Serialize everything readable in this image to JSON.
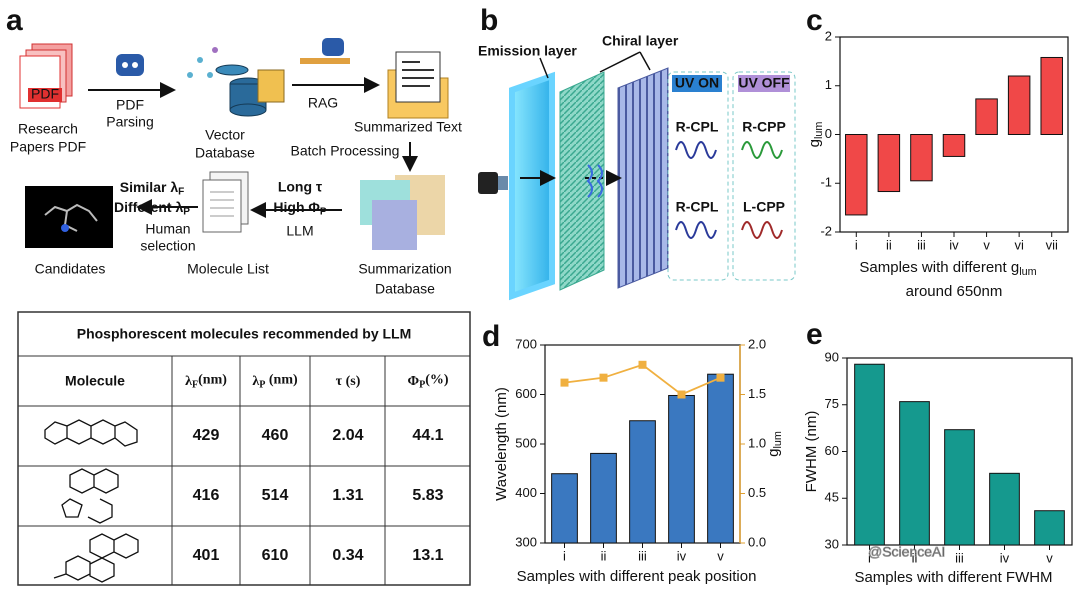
{
  "panel_labels": [
    "a",
    "b",
    "c",
    "d",
    "e"
  ],
  "workflow": {
    "research": [
      "Research",
      "Papers PDF"
    ],
    "pdf_icon": "PDF",
    "parsing": [
      "PDF",
      "Parsing"
    ],
    "vector": [
      "Vector",
      "Database"
    ],
    "rag": "RAG",
    "summarized": "Summarized Text",
    "batch": "Batch Processing",
    "summ_db": [
      "Summarization",
      "Database"
    ],
    "long_tau": "Long τ",
    "high_phi": {
      "main": "High Φ",
      "sub": "P"
    },
    "llm": "LLM",
    "molecule_list": "Molecule List",
    "similar": {
      "main": "Similar λ",
      "sub": "F"
    },
    "different": {
      "main": "Different λ",
      "sub": "P"
    },
    "human": [
      "Human",
      "selection"
    ],
    "candidates": "Candidates"
  },
  "device": {
    "emission": "Emission layer",
    "chiral": "Chiral layer",
    "uv_on": "UV ON",
    "uv_off": "UV OFF",
    "cells": [
      "R-CPL",
      "R-CPP",
      "R-CPL",
      "L-CPP"
    ]
  },
  "table": {
    "title": "Phosphorescent molecules recommended by LLM",
    "headers": [
      "Molecule",
      {
        "main": "λ",
        "sub": "F",
        "rest": "(nm)"
      },
      {
        "main": "λ",
        "sub": "P",
        "rest": " (nm)"
      },
      "τ (s)",
      {
        "main": "Φ",
        "sub": "P",
        "rest": "(%)"
      }
    ],
    "rows": [
      [
        429,
        460,
        2.04,
        44.1
      ],
      [
        416,
        514,
        1.31,
        5.83
      ],
      [
        401,
        610,
        0.34,
        13.1
      ]
    ]
  },
  "watermark": "@ScienceAI",
  "chart_data": [
    {
      "type": "bar",
      "categories": [
        "i",
        "ii",
        "iii",
        "iv",
        "v",
        "vi",
        "vii"
      ],
      "values": [
        -1.65,
        -1.17,
        -0.95,
        -0.45,
        0.73,
        1.2,
        1.58
      ],
      "color": "#f04848",
      "ylim": [
        -2,
        2
      ],
      "yticks": [
        -2,
        -1,
        0,
        1,
        2
      ],
      "ylabel": {
        "main": "g",
        "sub": "lum"
      },
      "xlabel": {
        "main": "Samples with different g",
        "sub": "lum"
      },
      "xlabel_line2": "around 650nm"
    },
    {
      "type": "bar",
      "categories": [
        "i",
        "ii",
        "iii",
        "iv",
        "v"
      ],
      "series": [
        {
          "color": "#3a78c0",
          "values": [
            440,
            481,
            547,
            598,
            641
          ]
        },
        {
          "type": "line",
          "axis": "y2",
          "color": "#f0b040",
          "values": [
            1.62,
            1.67,
            1.8,
            1.5,
            1.67
          ]
        }
      ],
      "ylim": [
        300,
        700
      ],
      "yticks": [
        300,
        400,
        500,
        600,
        700
      ],
      "ylabel": "Wavelength (nm)",
      "y2lim": [
        0,
        2
      ],
      "y2ticks": [
        {
          "value": 0,
          "label": "0.0"
        },
        0.5,
        {
          "value": 1,
          "label": "1.0"
        },
        1.5,
        {
          "value": 2,
          "label": "2.0"
        }
      ],
      "y2label": {
        "main": "g",
        "sub": "lum"
      },
      "xlabel": "Samples with different peak position"
    },
    {
      "type": "bar",
      "categories": [
        "i",
        "ii",
        "iii",
        "iv",
        "v"
      ],
      "values": [
        88,
        76,
        67,
        53,
        41
      ],
      "color": "#15998e",
      "ylim": [
        30,
        90
      ],
      "yticks": [
        30,
        45,
        60,
        75,
        90
      ],
      "ylabel": "FWHM (nm)",
      "xlabel": "Samples with different FWHM"
    }
  ]
}
